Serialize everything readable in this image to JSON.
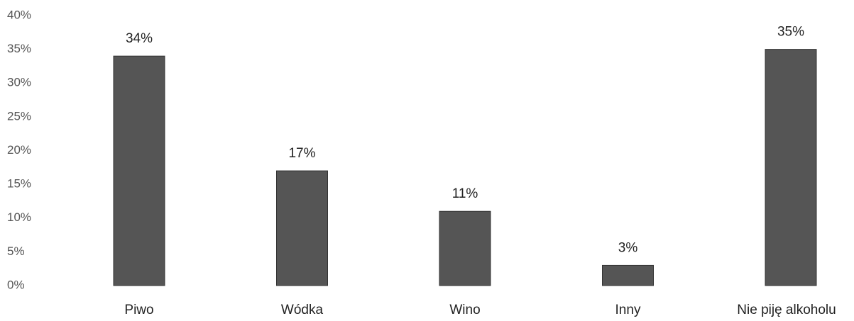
{
  "chart_data": {
    "type": "bar",
    "categories": [
      "Piwo",
      "Wódka",
      "Wino",
      "Inny",
      "Nie piję alkoholu"
    ],
    "values": [
      34,
      17,
      11,
      3,
      35
    ],
    "value_labels": [
      "34%",
      "17%",
      "11%",
      "3%",
      "35%"
    ],
    "color": "#555555",
    "ylim": [
      0,
      40
    ],
    "yticks": [
      {
        "value": 0,
        "label": "0%"
      },
      {
        "value": 5,
        "label": "5%"
      },
      {
        "value": 10,
        "label": "10%"
      },
      {
        "value": 15,
        "label": "15%"
      },
      {
        "value": 20,
        "label": "20%"
      },
      {
        "value": 25,
        "label": "25%"
      },
      {
        "value": 30,
        "label": "30%"
      },
      {
        "value": 35,
        "label": "35%"
      },
      {
        "value": 40,
        "label": "40%"
      }
    ],
    "grid": false
  }
}
